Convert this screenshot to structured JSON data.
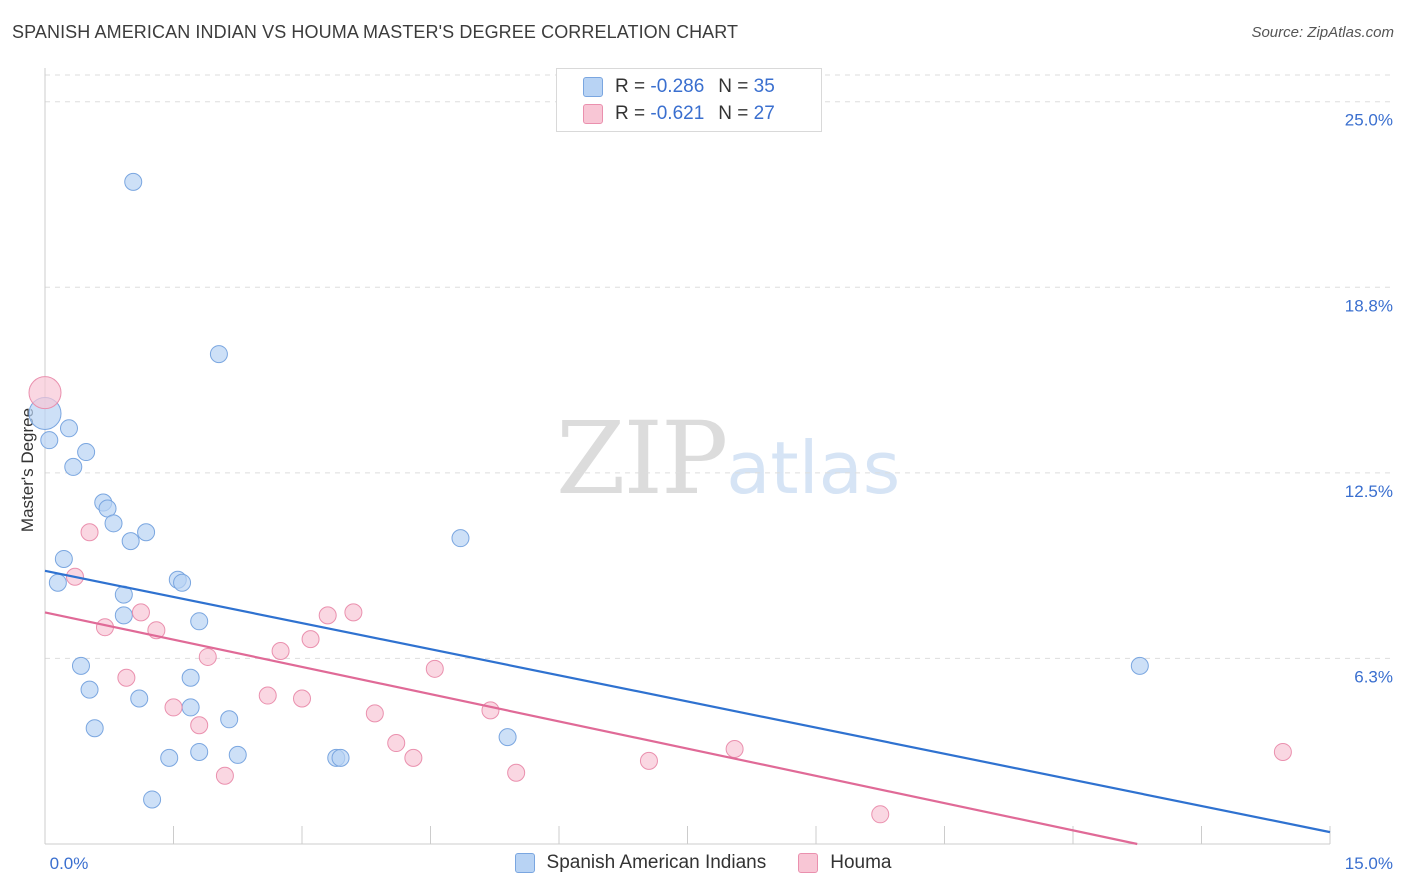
{
  "header": {
    "title": "SPANISH AMERICAN INDIAN VS HOUMA MASTER'S DEGREE CORRELATION CHART",
    "source": "Source: ZipAtlas.com"
  },
  "watermark": {
    "zip": "ZIP",
    "atlas": "atlas"
  },
  "legend": {
    "series": [
      {
        "r_label": "R =",
        "r_value": "-0.286",
        "n_label": "N =",
        "n_value": "35"
      },
      {
        "r_label": "R =",
        "r_value": "-0.621",
        "n_label": "N =",
        "n_value": "27"
      }
    ]
  },
  "colors": {
    "blue_fill": "#b8d3f4",
    "blue_stroke": "#7aa6e0",
    "blue_line": "#2f72d0",
    "pink_fill": "#f8c6d5",
    "pink_stroke": "#ea90ae",
    "pink_line": "#e06a97",
    "tick_label": "#3a6fcf",
    "grid": "#dddddd"
  },
  "chart_data": {
    "type": "scatter",
    "title": "SPANISH AMERICAN INDIAN VS HOUMA MASTER'S DEGREE CORRELATION CHART",
    "xlabel": "",
    "ylabel": "Master's Degree",
    "xlim": [
      0,
      15
    ],
    "ylim": [
      0,
      26
    ],
    "x_tick_labels": [
      "0.0%",
      "15.0%"
    ],
    "y_ticks": [
      6.25,
      12.5,
      18.75,
      25.0
    ],
    "y_tick_labels": [
      "6.3%",
      "12.5%",
      "18.8%",
      "25.0%"
    ],
    "grid": true,
    "series": [
      {
        "name": "Spanish American Indians",
        "color": "blue",
        "points": [
          [
            0.0,
            14.5
          ],
          [
            0.05,
            13.6
          ],
          [
            0.28,
            14.0
          ],
          [
            0.48,
            13.2
          ],
          [
            0.33,
            12.7
          ],
          [
            0.68,
            11.5
          ],
          [
            0.73,
            11.3
          ],
          [
            0.8,
            10.8
          ],
          [
            1.18,
            10.5
          ],
          [
            1.0,
            10.2
          ],
          [
            0.22,
            9.6
          ],
          [
            0.15,
            8.8
          ],
          [
            0.92,
            8.4
          ],
          [
            1.55,
            8.9
          ],
          [
            1.6,
            8.8
          ],
          [
            0.92,
            7.7
          ],
          [
            1.8,
            7.5
          ],
          [
            0.42,
            6.0
          ],
          [
            1.7,
            5.6
          ],
          [
            0.52,
            5.2
          ],
          [
            1.1,
            4.9
          ],
          [
            1.7,
            4.6
          ],
          [
            2.15,
            4.2
          ],
          [
            0.58,
            3.9
          ],
          [
            1.45,
            2.9
          ],
          [
            1.8,
            3.1
          ],
          [
            2.25,
            3.0
          ],
          [
            3.4,
            2.9
          ],
          [
            3.45,
            2.9
          ],
          [
            1.25,
            1.5
          ],
          [
            5.4,
            3.6
          ],
          [
            4.85,
            10.3
          ],
          [
            1.03,
            22.3
          ],
          [
            2.03,
            16.5
          ],
          [
            12.78,
            6.0
          ]
        ],
        "trend": {
          "x": [
            0,
            15
          ],
          "y": [
            9.2,
            0.4
          ]
        }
      },
      {
        "name": "Houma",
        "color": "pink",
        "points": [
          [
            0.0,
            15.2
          ],
          [
            0.35,
            9.0
          ],
          [
            0.52,
            10.5
          ],
          [
            0.7,
            7.3
          ],
          [
            1.12,
            7.8
          ],
          [
            1.3,
            7.2
          ],
          [
            0.95,
            5.6
          ],
          [
            1.5,
            4.6
          ],
          [
            1.8,
            4.0
          ],
          [
            1.9,
            6.3
          ],
          [
            2.1,
            2.3
          ],
          [
            2.6,
            5.0
          ],
          [
            2.75,
            6.5
          ],
          [
            3.0,
            4.9
          ],
          [
            3.1,
            6.9
          ],
          [
            3.3,
            7.7
          ],
          [
            3.6,
            7.8
          ],
          [
            3.85,
            4.4
          ],
          [
            4.1,
            3.4
          ],
          [
            4.3,
            2.9
          ],
          [
            4.55,
            5.9
          ],
          [
            5.2,
            4.5
          ],
          [
            5.5,
            2.4
          ],
          [
            7.05,
            2.8
          ],
          [
            8.05,
            3.2
          ],
          [
            9.75,
            1.0
          ],
          [
            14.45,
            3.1
          ]
        ],
        "trend": {
          "x": [
            0,
            12.75
          ],
          "y": [
            7.8,
            0.0
          ]
        }
      }
    ]
  },
  "bottom_legend": {
    "items": [
      {
        "label": "Spanish American Indians"
      },
      {
        "label": "Houma"
      }
    ]
  }
}
